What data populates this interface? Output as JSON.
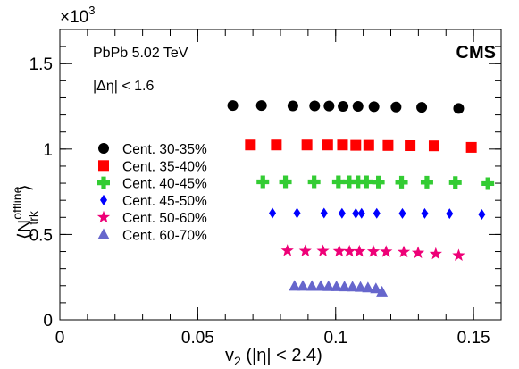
{
  "chart_data": {
    "type": "scatter",
    "xlabel": "v2 (|η| < 2.4)",
    "xlabel_parts": {
      "v": "v",
      "sub": "2",
      "rest": " (|η| < 2.4)"
    },
    "ylabel": "⟨N_trk^offline⟩",
    "ylabel_parts": {
      "open": "⟨",
      "N": "N",
      "sub": "trk",
      "sup": "offline",
      "close": "⟩"
    },
    "y_multiplier": "×10",
    "y_multiplier_exp": "3",
    "xlim": [
      0,
      0.16
    ],
    "ylim": [
      0,
      1.7
    ],
    "x_ticks": [
      0,
      0.05,
      0.1,
      0.15
    ],
    "x_tick_labels": [
      "0",
      "0.05",
      "0.1",
      "0.15"
    ],
    "y_ticks": [
      0,
      0.5,
      1,
      1.5
    ],
    "y_tick_labels": [
      "0",
      "0.5",
      "1",
      "1.5"
    ],
    "legend_position": "left",
    "annotations": [
      "PbPb 5.02 TeV",
      "|Δη| < 1.6"
    ],
    "experiment_label": "CMS",
    "series": [
      {
        "name": "Cent. 30-35%",
        "marker": "circle",
        "color": "#000000",
        "x": [
          0.0627,
          0.0731,
          0.0845,
          0.0924,
          0.0976,
          0.1027,
          0.1081,
          0.1139,
          0.1219,
          0.1312,
          0.1446
        ],
        "y": [
          1.255,
          1.255,
          1.253,
          1.253,
          1.252,
          1.25,
          1.25,
          1.248,
          1.246,
          1.244,
          1.238
        ]
      },
      {
        "name": "Cent. 35-40%",
        "marker": "square",
        "color": "#ff0000",
        "x": [
          0.0691,
          0.0785,
          0.0896,
          0.0971,
          0.1025,
          0.1073,
          0.112,
          0.119,
          0.127,
          0.1357,
          0.1492
        ],
        "y": [
          1.024,
          1.024,
          1.024,
          1.024,
          1.024,
          1.022,
          1.022,
          1.021,
          1.02,
          1.019,
          1.01
        ]
      },
      {
        "name": "Cent. 40-45%",
        "marker": "cross",
        "color": "#33cc33",
        "x": [
          0.0736,
          0.0818,
          0.0922,
          0.101,
          0.1049,
          0.1081,
          0.1112,
          0.1155,
          0.1239,
          0.1331,
          0.1434,
          0.1552
        ],
        "y": [
          0.808,
          0.808,
          0.808,
          0.808,
          0.808,
          0.808,
          0.808,
          0.807,
          0.806,
          0.806,
          0.804,
          0.798
        ]
      },
      {
        "name": "Cent. 45-50%",
        "marker": "diamond",
        "color": "#0000ff",
        "x": [
          0.0771,
          0.086,
          0.0958,
          0.1023,
          0.1073,
          0.1094,
          0.1149,
          0.1242,
          0.1323,
          0.1413,
          0.153
        ],
        "y": [
          0.625,
          0.625,
          0.625,
          0.624,
          0.623,
          0.624,
          0.624,
          0.623,
          0.623,
          0.622,
          0.617
        ]
      },
      {
        "name": "Cent. 50-60%",
        "marker": "star",
        "color": "#ee0077",
        "x": [
          0.0825,
          0.089,
          0.0954,
          0.1013,
          0.105,
          0.1086,
          0.1137,
          0.1183,
          0.1247,
          0.1299,
          0.1363,
          0.1446
        ],
        "y": [
          0.405,
          0.403,
          0.403,
          0.402,
          0.401,
          0.401,
          0.4,
          0.399,
          0.397,
          0.392,
          0.386,
          0.377
        ]
      },
      {
        "name": "Cent. 60-70%",
        "marker": "triangle",
        "color": "#6666cc",
        "x": [
          0.0851,
          0.0881,
          0.0914,
          0.0946,
          0.0974,
          0.1003,
          0.1032,
          0.1061,
          0.109,
          0.1117,
          0.1146,
          0.1168
        ],
        "y": [
          0.197,
          0.197,
          0.196,
          0.196,
          0.195,
          0.194,
          0.193,
          0.192,
          0.19,
          0.187,
          0.182,
          0.163
        ]
      }
    ]
  }
}
